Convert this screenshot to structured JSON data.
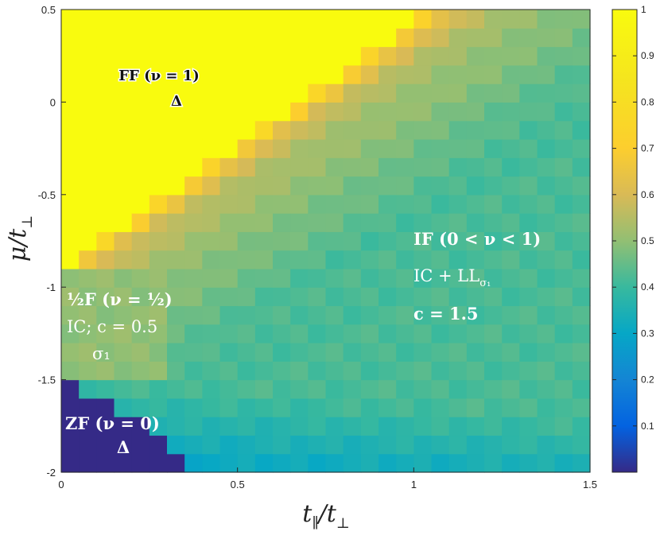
{
  "chart_data": {
    "type": "heatmap",
    "xlabel": "t_∥/t_⊥",
    "ylabel": "μ/t_⊥",
    "xlim": [
      0,
      1.5
    ],
    "ylim": [
      -2,
      0.5
    ],
    "x_ticks": [
      "0",
      "0.5",
      "1",
      "1.5"
    ],
    "y_ticks": [
      "0.5",
      "0",
      "-0.5",
      "-1",
      "-1.5",
      "-2"
    ],
    "colorbar": {
      "range": [
        0,
        1
      ],
      "ticks": [
        "0.1",
        "0.2",
        "0.3",
        "0.4",
        "0.5",
        "0.6",
        "0.7",
        "0.8",
        "0.9",
        "1"
      ],
      "colormap": "parula"
    },
    "grid": {
      "nx": 30,
      "ny": 25,
      "dx": 0.05,
      "dy": 0.1
    },
    "phases": [
      {
        "name": "FF",
        "value": 1.0,
        "region": "mu above boundary from (0,-0.9) to (1.05,0.5)"
      },
      {
        "name": "1/2 F",
        "value": 0.5,
        "region": "0<=t<0.3, -1.5<=mu<-0.9"
      },
      {
        "name": "ZF",
        "value": 0.0,
        "region": "lower-left corner, mu<-1.5"
      },
      {
        "name": "IF",
        "value": "0 to 1",
        "region": "remaining area"
      }
    ],
    "annotations": {
      "ff": "FF (ν = 1)",
      "ff_symbol": "Δ",
      "half_line1_frac": "½",
      "half_line1_rest": "F (ν = ½)",
      "half_line2": "IC; c = 0.5",
      "half_line3": "σ₁",
      "if_line1": "IF (0 < ν < 1)",
      "if_line2": "IC + LL",
      "if_line2_sub": "σ₁",
      "if_line3": "c = 1.5",
      "zf": "ZF (ν = 0)",
      "zf_symbol": "Δ"
    },
    "colors": {
      "ff": "#f9fb0e",
      "half": "#3cb9a0",
      "zf": "#37348f"
    }
  }
}
